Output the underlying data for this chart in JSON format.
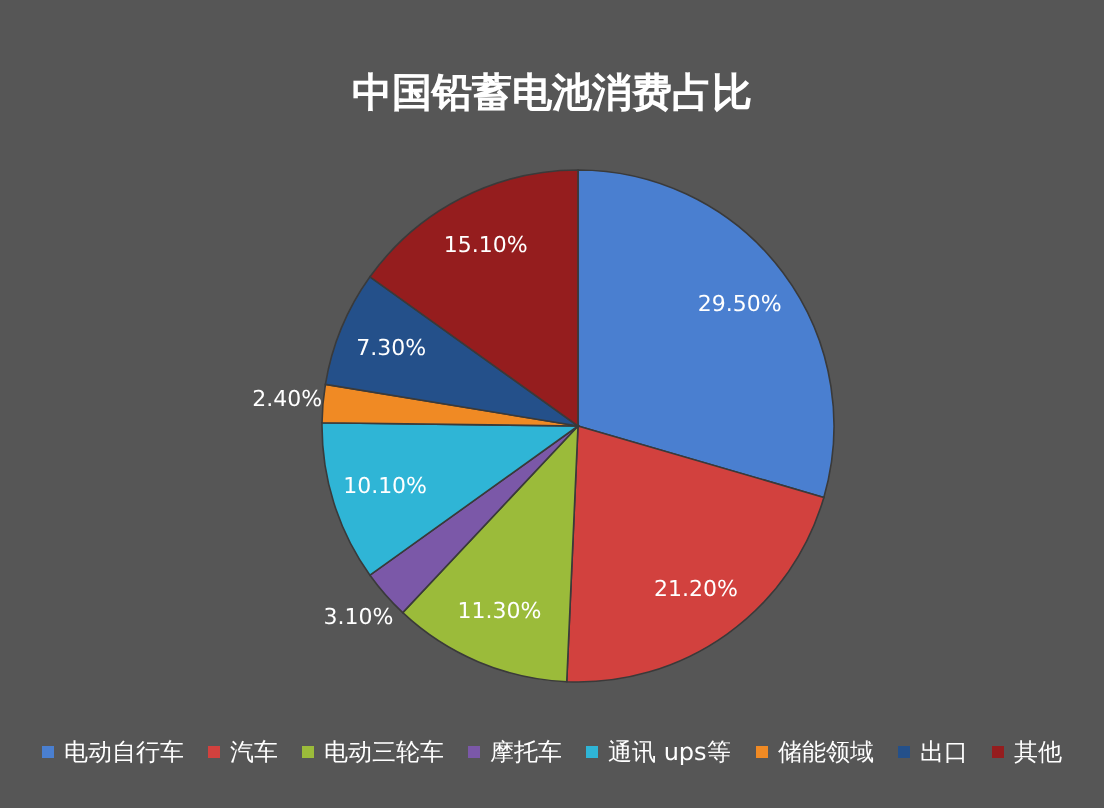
{
  "chart_data": {
    "type": "pie",
    "title": "中国铅蓄电池消费占比",
    "categories": [
      "电动自行车",
      "汽车",
      "电动三轮车",
      "摩托车",
      "通讯 ups等",
      "储能领域",
      "出口",
      "其他"
    ],
    "values": [
      29.5,
      21.2,
      11.3,
      3.1,
      10.1,
      2.4,
      7.3,
      15.1
    ],
    "colors": [
      "#4a7fd0",
      "#d2413e",
      "#9bbb3a",
      "#7b58a8",
      "#2fb5d6",
      "#f08a24",
      "#24508a",
      "#951d1e"
    ],
    "value_labels": [
      "29.50%",
      "21.20%",
      "11.30%",
      "3.10%",
      "10.10%",
      "2.40%",
      "7.30%",
      "15.10%"
    ],
    "legend": "bottom"
  }
}
